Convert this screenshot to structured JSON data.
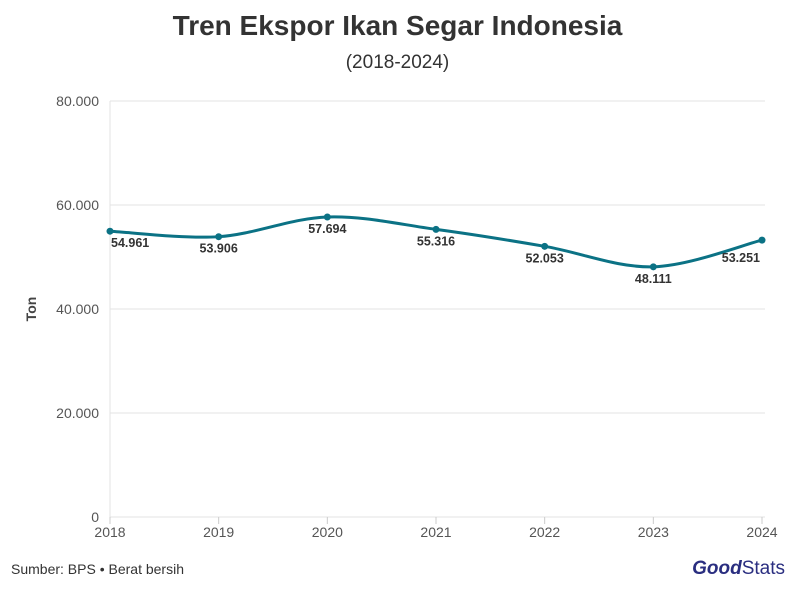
{
  "chart_data": {
    "type": "line",
    "title": "Tren Ekspor Ikan Segar Indonesia",
    "subtitle": "(2018-2024)",
    "ylabel": "Ton",
    "xlabel": "",
    "categories": [
      "2018",
      "2019",
      "2020",
      "2021",
      "2022",
      "2023",
      "2024"
    ],
    "values": [
      54961,
      53906,
      57694,
      55316,
      52053,
      48111,
      53251
    ],
    "value_labels": [
      "54.961",
      "53.906",
      "57.694",
      "55.316",
      "52.053",
      "48.111",
      "53.251"
    ],
    "ylim": [
      0,
      80000
    ],
    "yticks": [
      0,
      20000,
      40000,
      60000,
      80000
    ],
    "ytick_labels": [
      "0",
      "20.000",
      "40.000",
      "60.000",
      "80.000"
    ],
    "grid": true,
    "legend": "none",
    "line_color": "#0b7285"
  },
  "footer": {
    "source": "Sumber: BPS • Berat bersih",
    "logo_good": "Good",
    "logo_stats": "Stats"
  }
}
